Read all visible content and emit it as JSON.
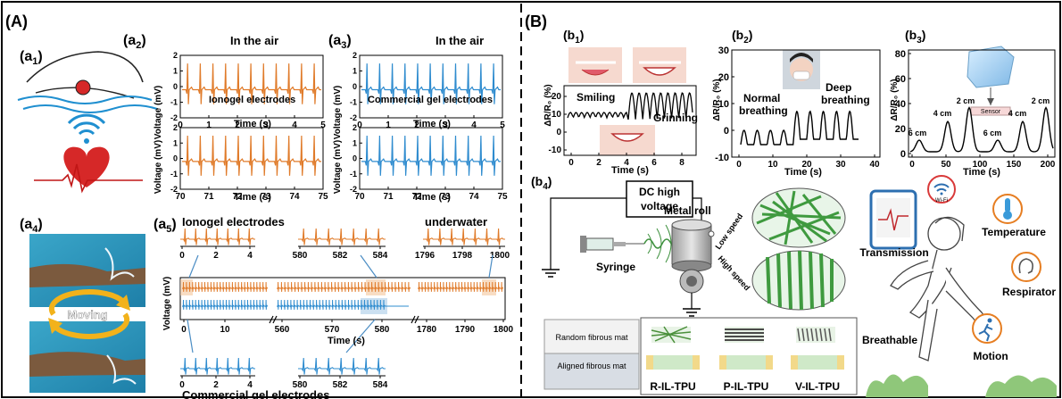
{
  "panels": {
    "A": "(A)",
    "B": "(B)",
    "a1": "(a",
    "a1_sub": "1",
    "a1_close": ")",
    "a2": "(a",
    "a2_sub": "2",
    "a2_close": ")",
    "a3": "(a",
    "a3_sub": "3",
    "a3_close": ")",
    "a4": "(a",
    "a4_sub": "4",
    "a4_close": ")",
    "a5": "(a",
    "a5_sub": "5",
    "a5_close": ")",
    "b1": "(b",
    "b1_sub": "1",
    "b1_close": ")",
    "b2": "(b",
    "b2_sub": "2",
    "b2_close": ")",
    "b3": "(b",
    "b3_sub": "3",
    "b3_close": ")",
    "b4": "(b",
    "b4_sub": "4",
    "b4_close": ")"
  },
  "a2": {
    "header": "In the air",
    "ylabel": "Voltage (mV)",
    "xlabel": "Time (s)",
    "label": "Ionogel electrodes",
    "top_xticks": [
      "0",
      "1",
      "2",
      "3",
      "4",
      "5"
    ],
    "bottom_xticks": [
      "70",
      "71",
      "72",
      "73",
      "74",
      "75"
    ],
    "yticks": [
      "2",
      "1",
      "0",
      "-1",
      "-2"
    ]
  },
  "a3": {
    "header": "In the air",
    "ylabel": "Voltage (mV)",
    "xlabel": "Time (s)",
    "label": "Commercial gel electrodes",
    "top_xticks": [
      "0",
      "1",
      "2",
      "3",
      "4",
      "5"
    ],
    "bottom_xticks": [
      "70",
      "71",
      "72",
      "73",
      "74",
      "75"
    ],
    "yticks": [
      "2",
      "1",
      "0",
      "-1",
      "-2"
    ]
  },
  "a4": {
    "moving": "Moving"
  },
  "a5": {
    "title": "Ionogel electrodes",
    "underwater": "underwater",
    "ylabel": "Voltage (mV)",
    "xlabel": "Time (s)",
    "bottom_title": "Commercial gel electrodes",
    "inset1_ticks": [
      "0",
      "2",
      "4"
    ],
    "inset2_ticks": [
      "580",
      "582",
      "584"
    ],
    "inset3_ticks": [
      "1796",
      "1798",
      "1800"
    ],
    "main_ticks_1": [
      "0",
      "10"
    ],
    "main_ticks_2": [
      "560",
      "570",
      "580"
    ],
    "main_ticks_3": [
      "1780",
      "1790",
      "1800"
    ],
    "inset4_ticks": [
      "0",
      "2",
      "4"
    ],
    "inset5_ticks": [
      "580",
      "582",
      "584"
    ]
  },
  "b1": {
    "ylabel": "ΔR/R₀ (%)",
    "xlabel": "Time (s)",
    "smiling": "Smiling",
    "grinning": "Grinning",
    "yticks": [
      "20",
      "10",
      "0",
      "-10"
    ],
    "xticks": [
      "0",
      "2",
      "4",
      "6",
      "8"
    ]
  },
  "b2": {
    "ylabel": "ΔR/R₀ (%)",
    "xlabel": "Time (s)",
    "normal": "Normal",
    "normal2": "breathing",
    "deep": "Deep",
    "deep2": "breathing",
    "yticks": [
      "30",
      "20",
      "10",
      "0",
      "-10"
    ],
    "xticks": [
      "0",
      "10",
      "20",
      "30",
      "40"
    ]
  },
  "b3": {
    "ylabel": "ΔR/R₀ (%)",
    "xlabel": "Time (s)",
    "sensor": "Sensor",
    "labels": [
      "6 cm",
      "4 cm",
      "2 cm",
      "6 cm",
      "4 cm",
      "2 cm"
    ],
    "yticks": [
      "80",
      "60",
      "40",
      "20",
      "0"
    ],
    "xticks": [
      "0",
      "50",
      "100",
      "150",
      "200"
    ]
  },
  "b4": {
    "dc1": "DC high",
    "dc2": "voltage",
    "metal_roll": "Metal roll",
    "syringe": "Syringe",
    "low_speed": "Low speed",
    "high_speed": "High speed",
    "random_mat": "Random fibrous mat",
    "aligned_mat": "Aligned fibrous mat",
    "r_tpu": "R-IL-TPU",
    "p_tpu": "P-IL-TPU",
    "v_tpu": "V-IL-TPU",
    "transmission": "Transmission",
    "wifi": "Wi-Fi",
    "temperature": "Temperature",
    "respirator": "Respirator",
    "breathable": "Breathable",
    "motion": "Motion"
  },
  "colors": {
    "orange": "#e07b2a",
    "blue": "#2f8ccf",
    "green": "#4caf50",
    "black": "#000000"
  }
}
